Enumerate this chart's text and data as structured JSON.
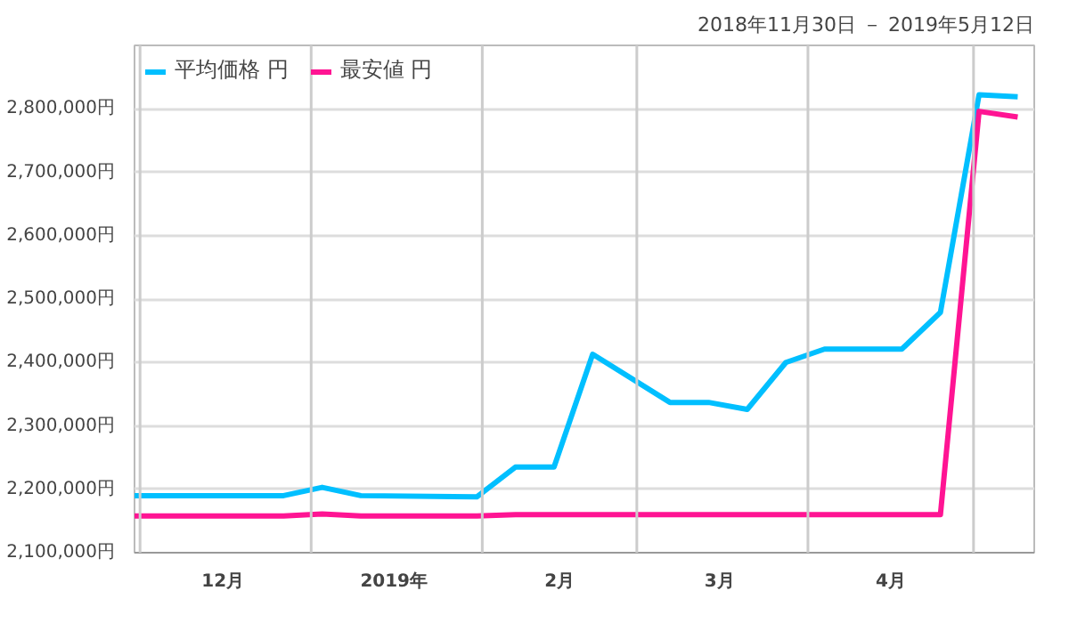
{
  "chart_data": {
    "type": "line",
    "subtitle": "2018年11月30日 － 2019年5月12日",
    "x": [
      "2018-11-30",
      "2018-12-27",
      "2019-01-03",
      "2019-01-10",
      "2019-01-31",
      "2019-02-07",
      "2019-02-14",
      "2019-02-21",
      "2019-03-07",
      "2019-03-14",
      "2019-03-21",
      "2019-03-28",
      "2019-04-04",
      "2019-04-18",
      "2019-04-25",
      "2019-05-02",
      "2019-05-09"
    ],
    "series": [
      {
        "name": "平均価格 円",
        "color": "#00bfff",
        "values": [
          2190000,
          2190000,
          2203000,
          2190000,
          2188000,
          2235000,
          2235000,
          2413000,
          2337000,
          2337000,
          2326000,
          2400000,
          2421000,
          2421000,
          2479000,
          2822000,
          2819000
        ]
      },
      {
        "name": "最安値 円",
        "color": "#ff1493",
        "values": [
          2158000,
          2158000,
          2161000,
          2158000,
          2158000,
          2160000,
          2160000,
          2160000,
          2160000,
          2160000,
          2160000,
          2160000,
          2160000,
          2160000,
          2160000,
          2796000,
          2787000
        ]
      }
    ],
    "xlim": [
      "2018-11-30",
      "2019-05-12"
    ],
    "xticks": [
      {
        "value": "2018-12-01",
        "label": null
      },
      {
        "value": "2018-12-16",
        "label": "12月"
      },
      {
        "value": "2019-01-01",
        "label": null
      },
      {
        "value": "2019-01-16",
        "label": "2019年"
      },
      {
        "value": "2019-02-01",
        "label": null
      },
      {
        "value": "2019-02-15",
        "label": "2月"
      },
      {
        "value": "2019-03-01",
        "label": null
      },
      {
        "value": "2019-03-16",
        "label": "3月"
      },
      {
        "value": "2019-04-01",
        "label": null
      },
      {
        "value": "2019-04-16",
        "label": "4月"
      },
      {
        "value": "2019-05-01",
        "label": null
      }
    ],
    "ylim": [
      2100000,
      2900000
    ],
    "yticks": [
      {
        "value": 2100000,
        "label": "2,100,000円"
      },
      {
        "value": 2200000,
        "label": "2,200,000円"
      },
      {
        "value": 2300000,
        "label": "2,300,000円"
      },
      {
        "value": 2400000,
        "label": "2,400,000円"
      },
      {
        "value": 2500000,
        "label": "2,500,000円"
      },
      {
        "value": 2600000,
        "label": "2,600,000円"
      },
      {
        "value": 2700000,
        "label": "2,700,000円"
      },
      {
        "value": 2800000,
        "label": "2,800,000円"
      }
    ],
    "grid": true,
    "legend": "top left",
    "marker": "none",
    "line_style": "solid"
  }
}
